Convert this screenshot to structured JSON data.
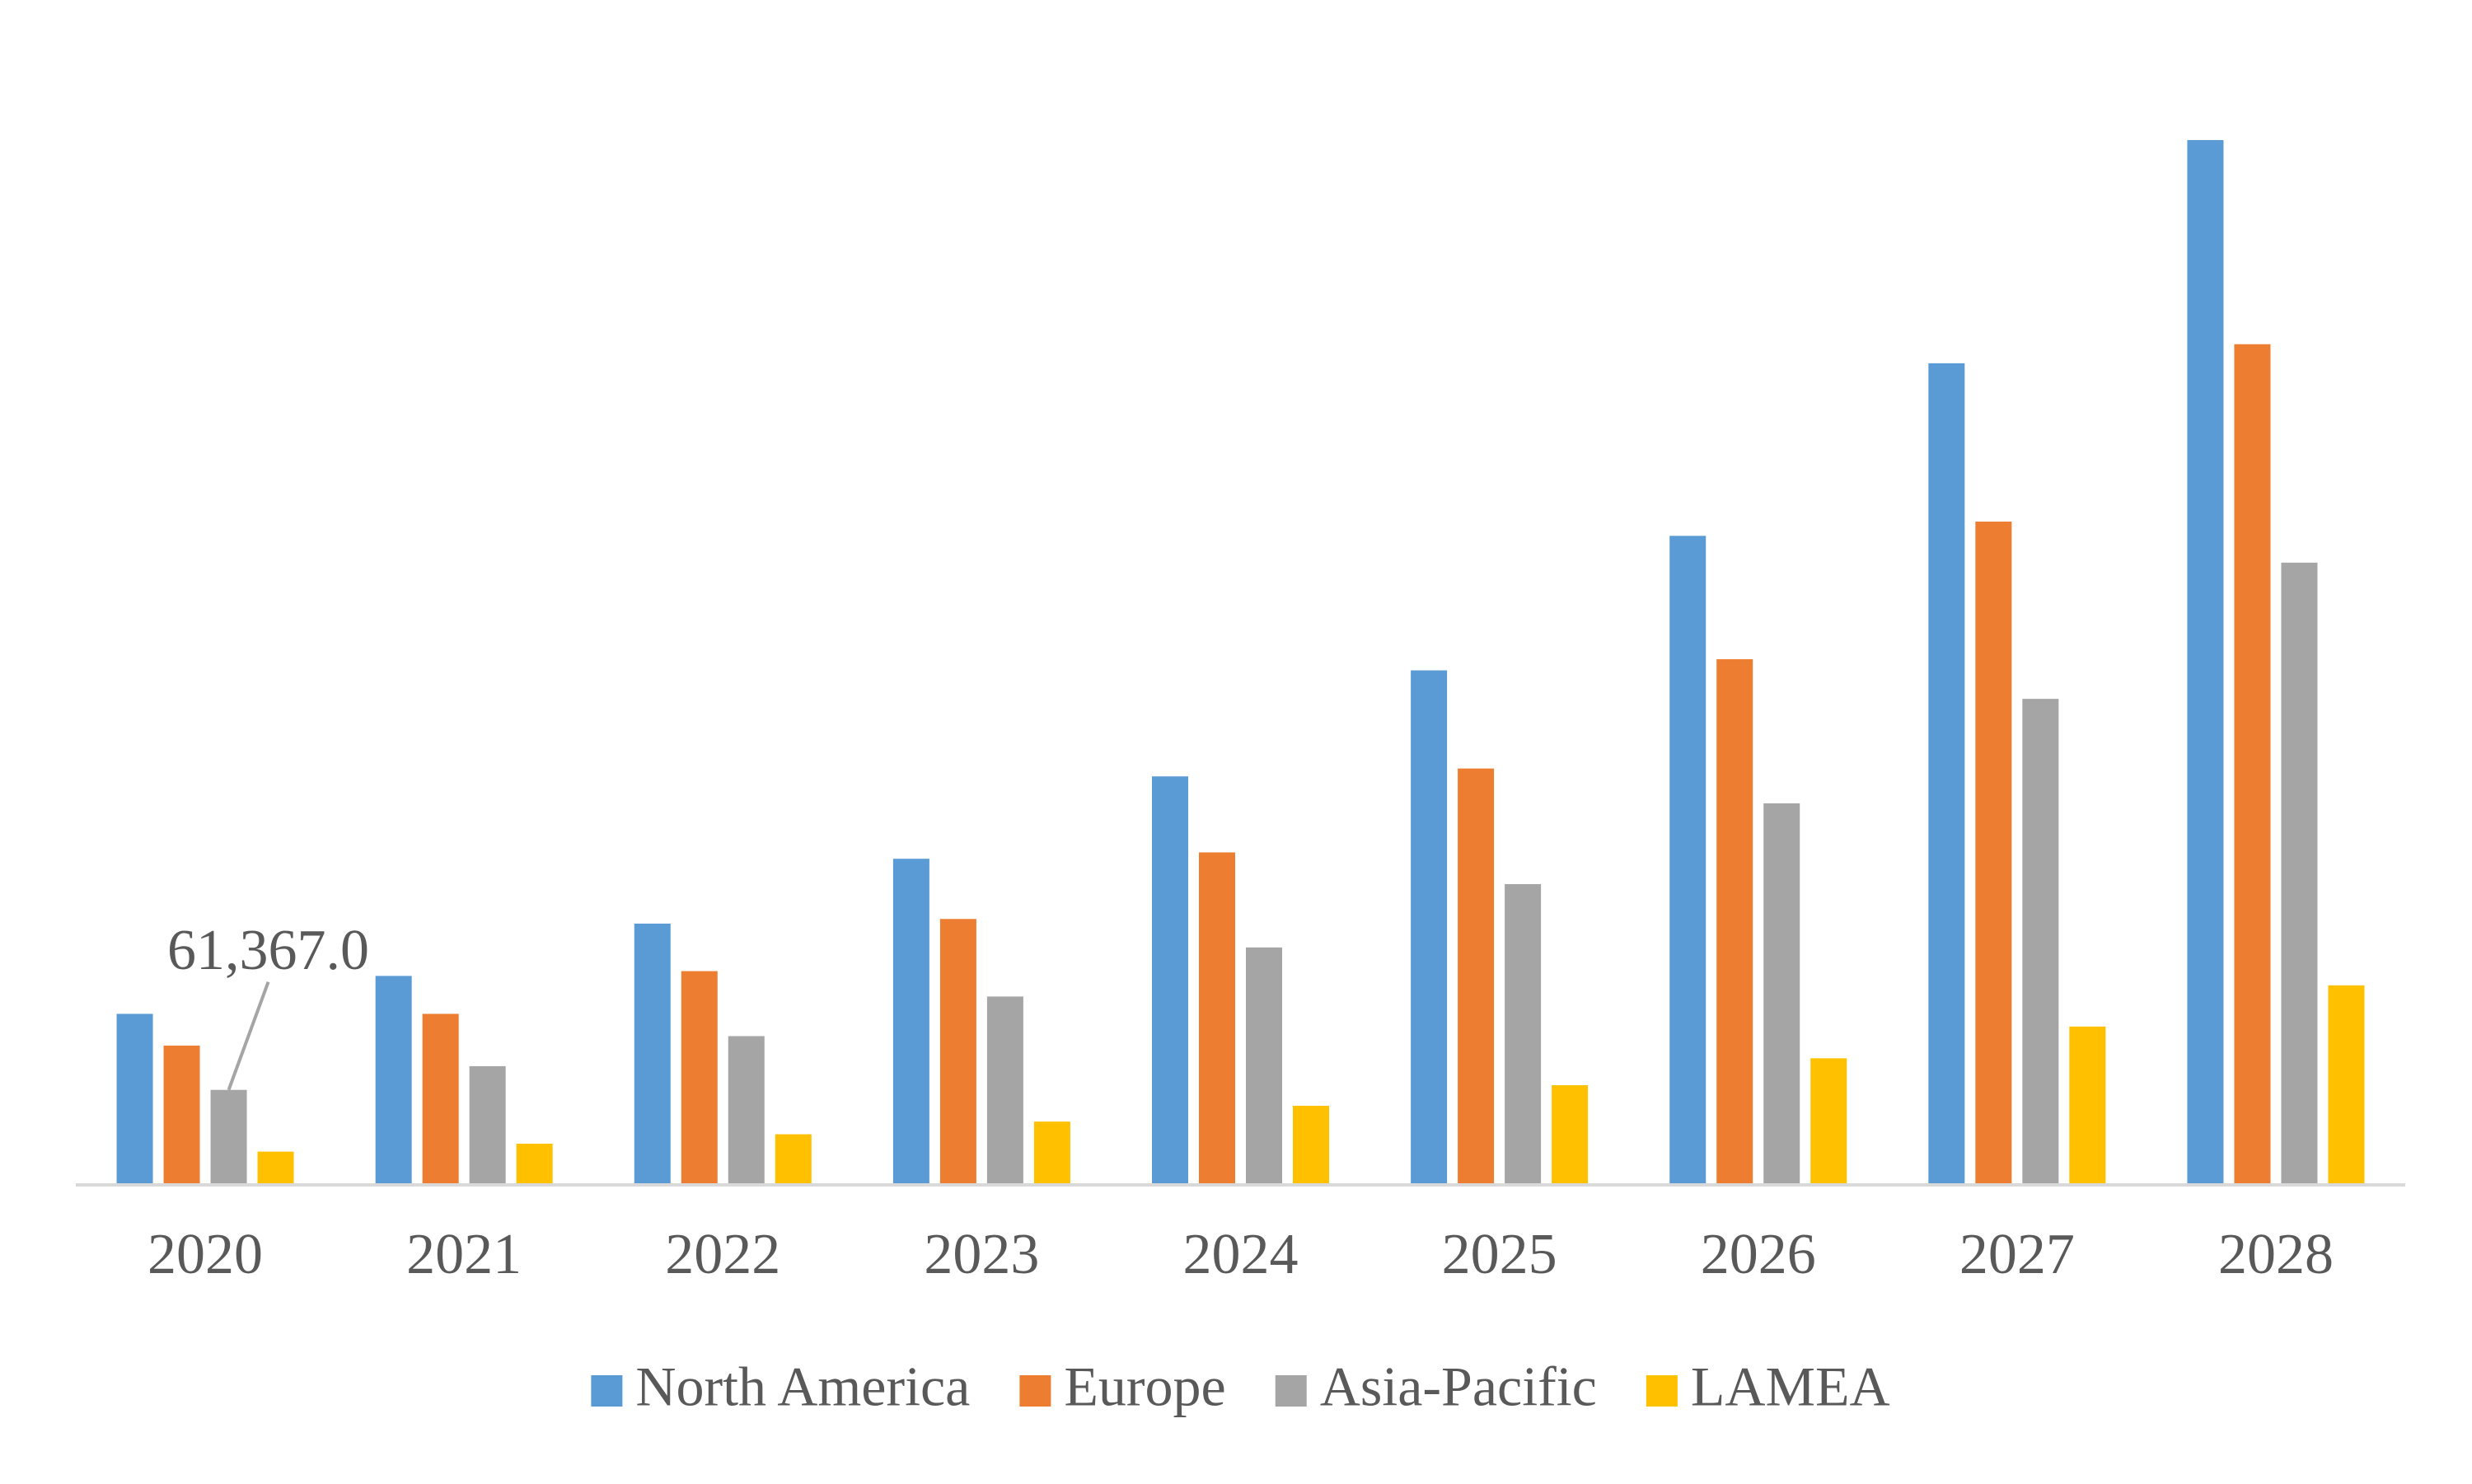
{
  "chart_data": {
    "type": "bar",
    "categories": [
      "2020",
      "2021",
      "2022",
      "2023",
      "2024",
      "2025",
      "2026",
      "2027",
      "2028"
    ],
    "series": [
      {
        "name": "North America",
        "color": "#5b9bd5",
        "values": [
          110500,
          135000,
          168800,
          210700,
          263900,
          332400,
          419300,
          530800,
          675000
        ]
      },
      {
        "name": "Europe",
        "color": "#ed7d31",
        "values": [
          90000,
          110500,
          138100,
          171800,
          214800,
          269000,
          339600,
          428500,
          543100
        ]
      },
      {
        "name": "Asia-Pacific",
        "color": "#a5a5a5",
        "values": [
          61367,
          76700,
          96100,
          121700,
          153400,
          194300,
          246500,
          314000,
          402000
        ],
        "value_labels": [
          "61,367.0",
          null,
          null,
          null,
          null,
          null,
          null,
          null,
          null
        ]
      },
      {
        "name": "LAMEA",
        "color": "#ffc000",
        "values": [
          21500,
          26600,
          32700,
          40900,
          51100,
          64400,
          81800,
          102300,
          128900
        ]
      }
    ],
    "ylim": [
      0,
      700000
    ],
    "grid": false,
    "legend": "bottom"
  }
}
